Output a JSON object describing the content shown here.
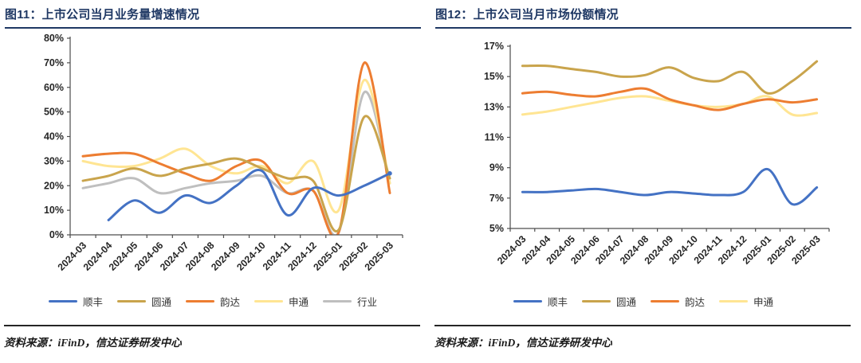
{
  "accent_color": "#1F3864",
  "panels": [
    {
      "title": "图11：上市公司当月业务量增速情况",
      "source": "资料来源：iFinD，信达证券研发中心",
      "chart_data": {
        "type": "line",
        "smooth": true,
        "grid": false,
        "legend_position": "bottom",
        "categories": [
          "2024-03",
          "2024-04",
          "2024-05",
          "2024-06",
          "2024-07",
          "2024-08",
          "2024-09",
          "2024-10",
          "2024-11",
          "2024-12",
          "2025-01",
          "2025-02",
          "2025-03"
        ],
        "y_axis": {
          "min": 0,
          "max": 80,
          "step": 10,
          "format": "percent",
          "labels": [
            "80%",
            "70%",
            "60%",
            "50%",
            "40%",
            "30%",
            "20%",
            "10%",
            "0%"
          ]
        },
        "series": [
          {
            "name": "顺丰",
            "key": "sf",
            "color": "#4472C4",
            "end_dot": true,
            "values": [
              null,
              6,
              14,
              9,
              16,
              13,
              20,
              26,
              8,
              19,
              16,
              20,
              25
            ]
          },
          {
            "name": "圆通",
            "key": "yto",
            "color": "#C9A44C",
            "values": [
              22,
              24,
              27,
              24,
              27,
              29,
              31,
              27,
              23,
              22,
              2,
              48,
              23
            ]
          },
          {
            "name": "韵达",
            "key": "yunda",
            "color": "#ED7D31",
            "values": [
              32,
              33,
              33,
              29,
              25,
              22,
              28,
              30,
              17,
              18,
              1,
              70,
              17
            ]
          },
          {
            "name": "申通",
            "key": "sto",
            "color": "#FFE593",
            "values": [
              30,
              28,
              28,
              31,
              35,
              28,
              25,
              28,
              21,
              30,
              10,
              63,
              21
            ]
          },
          {
            "name": "行业",
            "key": "industry",
            "color": "#BFBFBF",
            "values": [
              19,
              21,
              23,
              17,
              19,
              21,
              22,
              24,
              17,
              18,
              1,
              58,
              21
            ]
          }
        ]
      }
    },
    {
      "title": "图12：上市公司当月市场份额情况",
      "source": "资料来源：iFinD，信达证券研发中心",
      "chart_data": {
        "type": "line",
        "smooth": true,
        "grid": false,
        "legend_position": "bottom",
        "categories": [
          "2024-03",
          "2024-04",
          "2024-05",
          "2024-06",
          "2024-07",
          "2024-08",
          "2024-09",
          "2024-10",
          "2024-11",
          "2024-12",
          "2025-01",
          "2025-02",
          "2025-03"
        ],
        "y_axis": {
          "min": 5,
          "max": 17,
          "step": 2,
          "format": "percent",
          "labels": [
            "17%",
            "15%",
            "13%",
            "11%",
            "9%",
            "7%",
            "5%"
          ]
        },
        "series": [
          {
            "name": "顺丰",
            "key": "sf",
            "color": "#4472C4",
            "values": [
              7.4,
              7.4,
              7.5,
              7.6,
              7.4,
              7.2,
              7.4,
              7.3,
              7.2,
              7.4,
              8.9,
              6.6,
              7.7
            ]
          },
          {
            "name": "圆通",
            "key": "yto",
            "color": "#C9A44C",
            "values": [
              15.7,
              15.7,
              15.5,
              15.3,
              15.0,
              15.1,
              15.6,
              14.9,
              14.7,
              15.3,
              13.9,
              14.7,
              16.0
            ]
          },
          {
            "name": "韵达",
            "key": "yunda",
            "color": "#ED7D31",
            "values": [
              13.9,
              14.0,
              13.8,
              13.7,
              14.0,
              14.2,
              13.5,
              13.1,
              12.8,
              13.2,
              13.5,
              13.3,
              13.5
            ]
          },
          {
            "name": "申通",
            "key": "sto",
            "color": "#FFE593",
            "values": [
              12.5,
              12.7,
              13.0,
              13.3,
              13.6,
              13.7,
              13.4,
              13.1,
              13.0,
              13.2,
              13.7,
              12.5,
              12.6
            ]
          }
        ]
      }
    }
  ]
}
